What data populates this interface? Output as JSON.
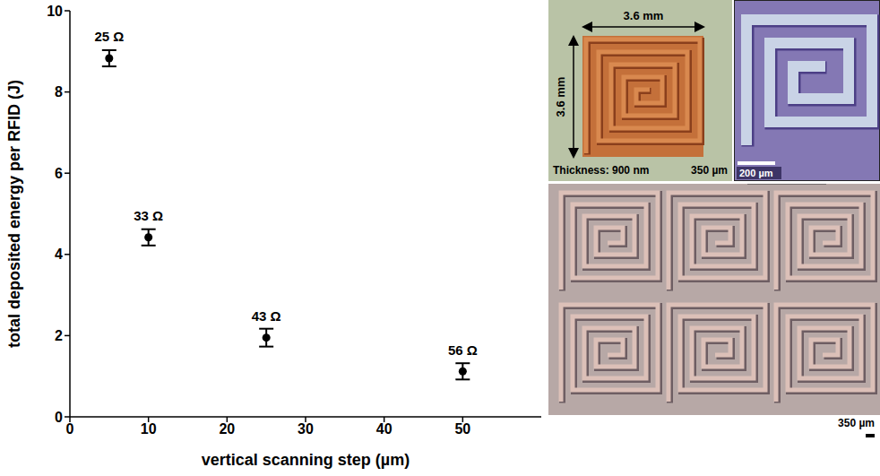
{
  "chart_data": {
    "type": "scatter",
    "x": [
      5,
      10,
      25,
      50
    ],
    "values": [
      8.83,
      4.42,
      1.95,
      1.12
    ],
    "errors": [
      0.2,
      0.2,
      0.22,
      0.2
    ],
    "point_labels": [
      "25 Ω",
      "33 Ω",
      "43 Ω",
      "56 Ω"
    ],
    "color": "#000000",
    "marker": "circle",
    "xlabel": "vertical scanning step (µm)",
    "ylabel": "total deposited energy per RFID (J)",
    "xlim": [
      0,
      60
    ],
    "ylim": [
      0,
      10
    ],
    "xticks": [
      0,
      10,
      20,
      30,
      40,
      50
    ],
    "yticks": [
      0,
      2,
      4,
      6,
      8,
      10
    ]
  },
  "images": {
    "coil_design": {
      "width_label": "3.6 mm",
      "height_label": "3.6 mm",
      "spacing_label": "350 µm",
      "thickness_label": "Thickness: 900 nm"
    },
    "microscope_zoom": {
      "scale_label": "200 µm"
    },
    "coil_array": {
      "scale_label": "350 µm"
    }
  }
}
